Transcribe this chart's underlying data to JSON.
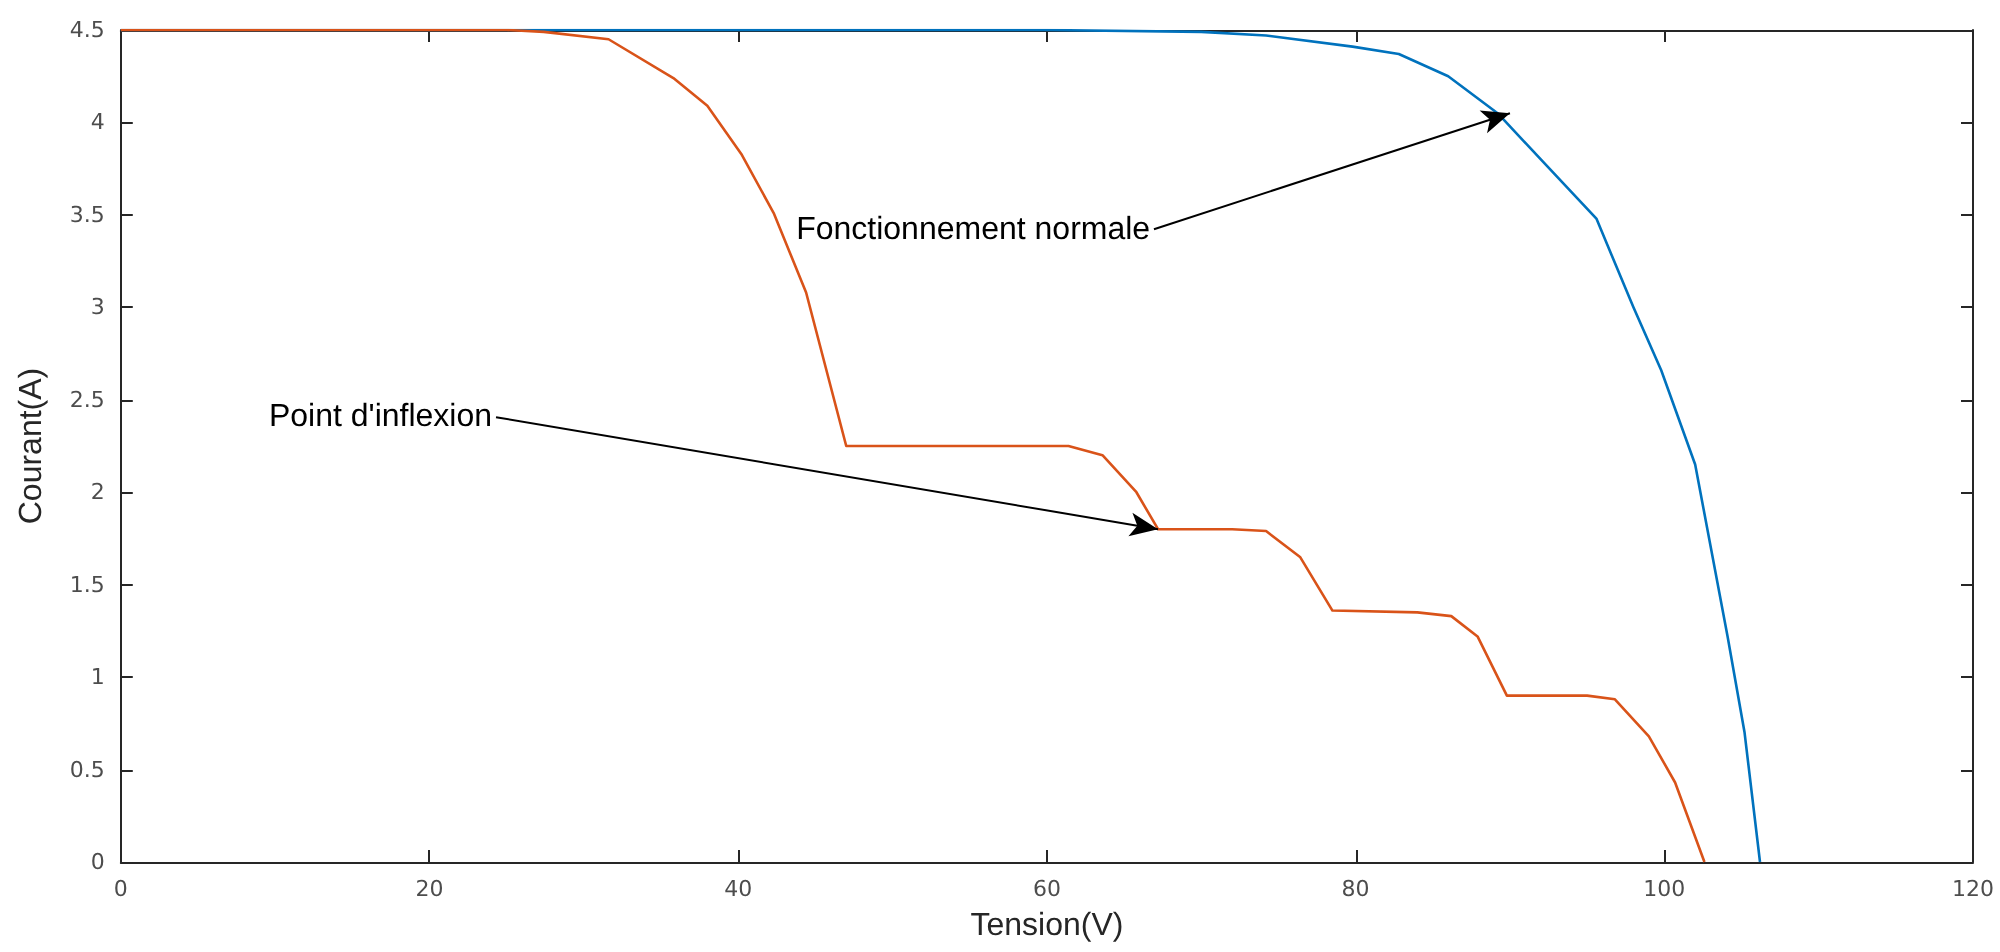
{
  "chart_data": {
    "type": "line",
    "xlabel": "Tension(V)",
    "ylabel": "Courant(A)",
    "xlim": [
      0,
      120
    ],
    "xticks": [
      0,
      20,
      40,
      60,
      80,
      100,
      120
    ],
    "ylim": [
      0,
      4.5
    ],
    "yticks": [
      0,
      0.5,
      1,
      1.5,
      2,
      2.5,
      3,
      3.5,
      4,
      4.5
    ],
    "grid": false,
    "marker": "none",
    "line_style": "solid",
    "series": [
      {
        "color": "#0072bd",
        "x": [
          0,
          20,
          40,
          60,
          70,
          74.2,
          79.8,
          82.8,
          86,
          89.2,
          92,
          95.6,
          98,
          99.8,
          102,
          104.1,
          105.2,
          106.2
        ],
        "values": [
          4.5,
          4.5,
          4.5,
          4.5,
          4.49,
          4.47,
          4.41,
          4.37,
          4.25,
          4.05,
          3.8,
          3.48,
          3.0,
          2.66,
          2.15,
          1.22,
          0.7,
          0
        ]
      },
      {
        "color": "#d95319",
        "x": [
          0,
          20,
          25,
          27.4,
          31.6,
          35.8,
          38,
          40.2,
          42.3,
          44.4,
          47,
          55,
          61.4,
          63.6,
          65.8,
          67.2,
          72,
          74.2,
          76.4,
          78.5,
          84,
          86.2,
          87.9,
          89.8,
          95,
          96.8,
          99,
          100.7,
          102.6
        ],
        "values": [
          4.5,
          4.5,
          4.5,
          4.49,
          4.45,
          4.24,
          4.09,
          3.83,
          3.51,
          3.08,
          2.25,
          2.25,
          2.25,
          2.2,
          2.0,
          1.8,
          1.8,
          1.79,
          1.65,
          1.36,
          1.35,
          1.33,
          1.22,
          0.9,
          0.9,
          0.88,
          0.68,
          0.43,
          0
        ]
      }
    ],
    "annotations": [
      {
        "text": "Fonctionnement normale",
        "x": 90,
        "y": 4.05
      },
      {
        "text": "Point d'inflexion",
        "x": 67.2,
        "y": 1.8
      }
    ]
  }
}
